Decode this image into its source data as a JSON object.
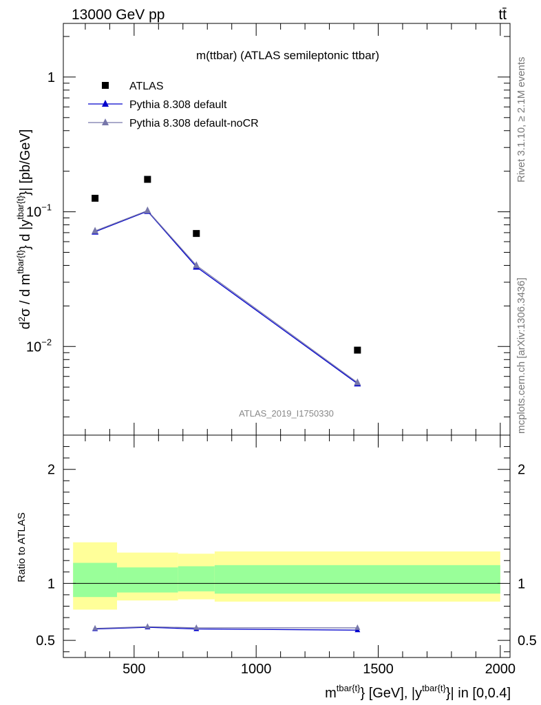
{
  "header": {
    "left": "13000 GeV pp",
    "right": "tt̄"
  },
  "side_labels": {
    "rivet": "Rivet 3.1.10, ≥ 2.1M events",
    "mcplots": "mcplots.cern.ch [arXiv:1306.3436]"
  },
  "chart_data": [
    {
      "type": "scatter",
      "panel": "main",
      "title": "m(ttbar) (ATLAS semileptonic ttbar)",
      "analysis_label": "ATLAS_2019_I1750330",
      "ylabel": "d²σ / d m^{tbar{t}} d |y^{tbar{t}}| [pb/GeV]",
      "y_scale": "log",
      "xlim": [
        210,
        2040
      ],
      "ylim": [
        0.0022,
        2.5
      ],
      "y_ticks": [
        {
          "value": 0.01,
          "label": "10",
          "exp": "−2"
        },
        {
          "value": 0.1,
          "label": "10",
          "exp": "−1"
        },
        {
          "value": 1,
          "label": "1",
          "exp": ""
        }
      ],
      "legend_position": "top-left",
      "x": [
        340,
        555,
        755,
        1415
      ],
      "series": [
        {
          "name": "ATLAS",
          "marker": "square",
          "color": "#000000",
          "values": [
            0.126,
            0.174,
            0.069,
            0.0094
          ]
        },
        {
          "name": "Pythia 8.308 default",
          "marker": "triangle",
          "color": "#0000cc",
          "values": [
            0.071,
            0.101,
            0.039,
            0.0053
          ]
        },
        {
          "name": "Pythia 8.308 default-noCR",
          "marker": "triangle",
          "color": "#7777aa",
          "values": [
            0.072,
            0.102,
            0.04,
            0.0054
          ]
        }
      ]
    },
    {
      "type": "line",
      "panel": "ratio",
      "ylabel": "Ratio to ATLAS",
      "xlabel": "m^{tbar{t}} [GeV], |y^{tbar{t}}| in [0,0.4]",
      "xlim": [
        210,
        2040
      ],
      "ylim": [
        0.35,
        2.3
      ],
      "x_ticks": [
        500,
        1000,
        1500,
        2000
      ],
      "y_ticks": [
        0.5,
        1,
        2
      ],
      "bands": [
        {
          "x_low": 250,
          "x_high": 430,
          "green": [
            0.88,
            1.18
          ],
          "yellow": [
            0.77,
            1.36
          ]
        },
        {
          "x_low": 430,
          "x_high": 680,
          "green": [
            0.92,
            1.14
          ],
          "yellow": [
            0.85,
            1.27
          ]
        },
        {
          "x_low": 680,
          "x_high": 830,
          "green": [
            0.93,
            1.15
          ],
          "yellow": [
            0.86,
            1.26
          ]
        },
        {
          "x_low": 830,
          "x_high": 2000,
          "green": [
            0.91,
            1.16
          ],
          "yellow": [
            0.84,
            1.28
          ]
        }
      ],
      "x": [
        340,
        555,
        755,
        1415
      ],
      "series": [
        {
          "name": "Pythia 8.308 default",
          "color": "#0000cc",
          "values": [
            0.6,
            0.615,
            0.6,
            0.59
          ]
        },
        {
          "name": "Pythia 8.308 default-noCR",
          "color": "#7777aa",
          "values": [
            0.605,
            0.62,
            0.61,
            0.61
          ]
        }
      ]
    }
  ]
}
